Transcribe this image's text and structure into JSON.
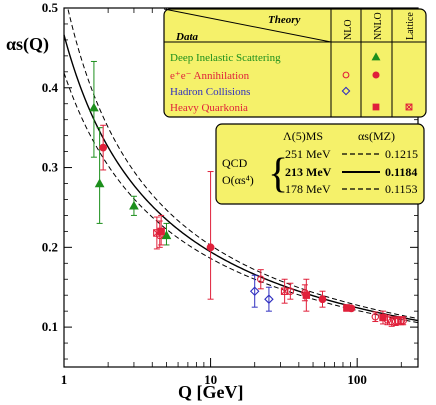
{
  "chart_data": {
    "type": "scatter",
    "title": "",
    "xlabel": "Q [GeV]",
    "ylabel": "αs(Q)",
    "xscale": "log",
    "xlim": [
      1,
      260
    ],
    "ylim": [
      0.05,
      0.5
    ],
    "xticks": [
      1,
      10,
      100
    ],
    "yticks": [
      0.1,
      0.2,
      0.3,
      0.4,
      0.5
    ],
    "legend": {
      "placement": "top-right",
      "theory_header": "Theory",
      "data_header": "Data",
      "columns": [
        "NLO",
        "NNLO",
        "Lattice"
      ],
      "rows": [
        {
          "label": "Deep Inelastic Scattering",
          "color": "#1c8f1c",
          "marks": [
            "",
            "filled-triangle",
            ""
          ]
        },
        {
          "label": "e⁺e⁻ Annihilation",
          "color": "#e0203a",
          "marks": [
            "open-circle",
            "filled-circle",
            ""
          ]
        },
        {
          "label": "Hadron Collisions",
          "color": "#3030c0",
          "marks": [
            "open-diamond",
            "",
            ""
          ]
        },
        {
          "label": "Heavy Quarkonia",
          "color": "#e0203a",
          "marks": [
            "",
            "filled-square",
            "crossed-square"
          ]
        }
      ]
    },
    "qcd_box": {
      "placement": "right-middle",
      "lambda_header": "Λ(5)MS",
      "alpha_header": "αs(MZ)",
      "left_line1": "QCD",
      "left_line2": "O(αs⁴)",
      "rows": [
        {
          "lambda": "251 MeV",
          "alpha": "0.1215",
          "style": "dashed"
        },
        {
          "lambda": "213 MeV",
          "alpha": "0.1184",
          "style": "solid"
        },
        {
          "lambda": "178 MeV",
          "alpha": "0.1153",
          "style": "dashed"
        }
      ]
    },
    "curves": [
      {
        "lambda_mev": 251,
        "style": "dashed"
      },
      {
        "lambda_mev": 213,
        "style": "solid"
      },
      {
        "lambda_mev": 178,
        "style": "dashed"
      }
    ],
    "series": [
      {
        "name": "Deep Inelastic Scattering",
        "color": "#1c8f1c",
        "marker": "filled-triangle",
        "points": [
          [
            1.6,
            0.375,
            0.058,
            0.062
          ],
          [
            1.75,
            0.28,
            0.07,
            0.05
          ],
          [
            3.0,
            0.252,
            0.012,
            0.012
          ],
          [
            5.0,
            0.215,
            0.015,
            0.012
          ]
        ]
      },
      {
        "name": "e+e- Annihilation (NNLO)",
        "color": "#e0203a",
        "marker": "filled-circle",
        "points": [
          [
            1.85,
            0.325,
            0.028,
            0.028
          ],
          [
            10.0,
            0.2,
            0.095,
            0.065
          ],
          [
            58.0,
            0.135,
            0.01,
            0.01
          ],
          [
            91.2,
            0.1235,
            0.003,
            0.003
          ]
        ]
      },
      {
        "name": "e+e- Annihilation (NLO)",
        "color": "#e0203a",
        "marker": "open-circle",
        "points": [
          [
            4.5,
            0.215,
            0.018,
            0.015
          ],
          [
            22.0,
            0.16,
            0.012,
            0.012
          ],
          [
            35.0,
            0.145,
            0.01,
            0.01
          ],
          [
            44.0,
            0.143,
            0.01,
            0.01
          ],
          [
            133.0,
            0.113,
            0.006,
            0.006
          ],
          [
            161.0,
            0.109,
            0.006,
            0.006
          ],
          [
            172.0,
            0.107,
            0.006,
            0.006
          ],
          [
            183.0,
            0.107,
            0.005,
            0.005
          ],
          [
            189.0,
            0.108,
            0.005,
            0.005
          ],
          [
            200.0,
            0.108,
            0.005,
            0.005
          ],
          [
            206.0,
            0.108,
            0.005,
            0.005
          ]
        ]
      },
      {
        "name": "Hadron Collisions",
        "color": "#3030c0",
        "marker": "open-diamond",
        "points": [
          [
            20.0,
            0.145,
            0.02,
            0.02
          ],
          [
            25.0,
            0.135,
            0.015,
            0.015
          ]
        ]
      },
      {
        "name": "Heavy Quarkonia (NNLO)",
        "color": "#e0203a",
        "marker": "filled-square",
        "points": [
          [
            4.6,
            0.22,
            0.02,
            0.017
          ],
          [
            45.0,
            0.14,
            0.02,
            0.02
          ],
          [
            85.0,
            0.124,
            0.004,
            0.004
          ],
          [
            150.0,
            0.112,
            0.008,
            0.008
          ]
        ]
      },
      {
        "name": "Heavy Quarkonia (Lattice)",
        "color": "#e0203a",
        "marker": "crossed-square",
        "points": [
          [
            4.3,
            0.218,
            0.02,
            0.02
          ],
          [
            32.0,
            0.145,
            0.015,
            0.015
          ]
        ]
      }
    ]
  }
}
